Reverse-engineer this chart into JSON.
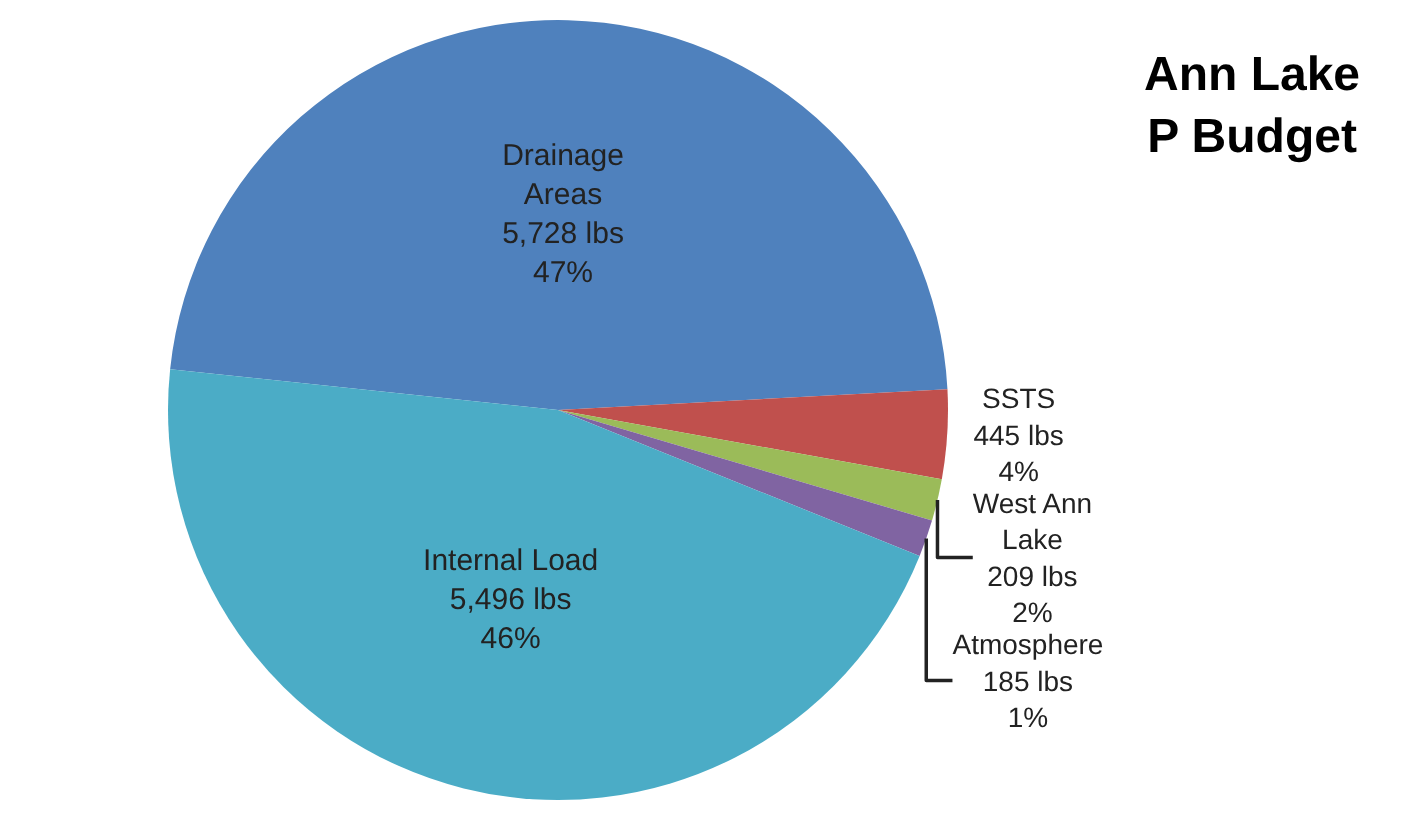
{
  "chart_data": {
    "type": "pie",
    "title": "Ann Lake\nP Budget",
    "categories": [
      "Drainage\nAreas",
      "SSTS",
      "West Ann\nLake",
      "Atmosphere",
      "Internal Load"
    ],
    "values": [
      5728,
      445,
      209,
      185,
      5496
    ],
    "colors": [
      "#4f81bd",
      "#c0504d",
      "#9bbb59",
      "#8064a2",
      "#4bacc6"
    ],
    "value_labels": [
      "5,728 lbs\n47%",
      "445 lbs\n4%",
      "209 lbs\n2%",
      "185 lbs\n1%",
      "5,496 lbs\n46%"
    ],
    "legend": false
  }
}
